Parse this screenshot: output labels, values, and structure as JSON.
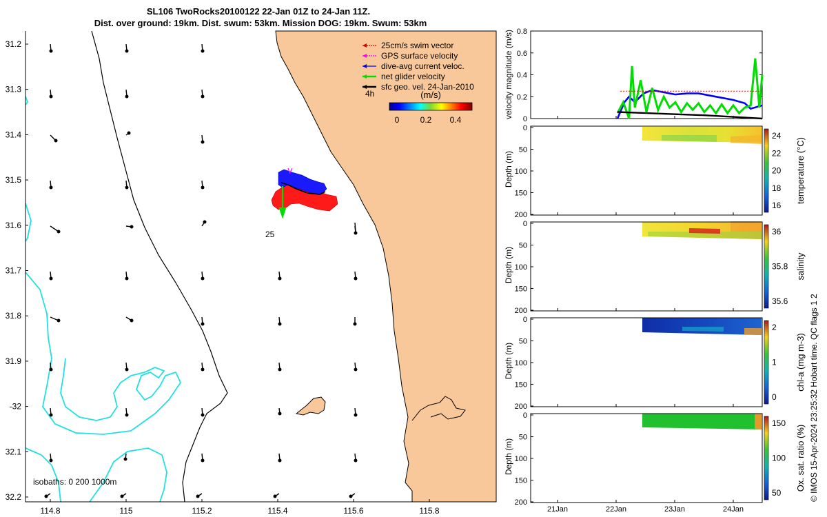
{
  "title": {
    "line1": "SL106 TwoRocks20100122 22-Jan 01Z to 24-Jan 11Z.",
    "line2": "Dist. over ground: 19km. Dist. swum: 53km. Mission DOG: 19km. Swum: 53km"
  },
  "colors": {
    "land": "#f9c89a",
    "isobath_200": "#000000",
    "isobath_1000": "#22e0e0",
    "swim_vector": "#e00000",
    "gps_velocity": "#ff00ff",
    "dive_avg": "#0000ff",
    "net_glider": "#00dd00",
    "sfc_geo": "#000000"
  },
  "map": {
    "lat_ticks": [
      "31.2",
      "31.3",
      "31.4",
      "31.5",
      "31.6",
      "31.7",
      "31.8",
      "31.9",
      "-32",
      "32.1",
      "32.2"
    ],
    "lon_ticks": [
      "114.8",
      "115",
      "115.2",
      "115.4",
      "115.6",
      "115.8"
    ],
    "legend": [
      {
        "key": "swim",
        "label": "25cm/s swim vector",
        "color": "#e00000"
      },
      {
        "key": "gps",
        "label": "GPS surface velocity",
        "color": "#ff00ff"
      },
      {
        "key": "dive",
        "label": "dive-avg current veloc.",
        "color": "#0000ff"
      },
      {
        "key": "net",
        "label": "net glider velocity",
        "color": "#00dd00"
      },
      {
        "key": "sfc",
        "label": "sfc geo. vel. 24-Jan-2010",
        "color": "#000000"
      }
    ],
    "time_label": "4h",
    "colorbar": {
      "title": "(m/s)",
      "ticks": [
        "0",
        "0.2",
        "0.4"
      ]
    },
    "scale_label": "25",
    "isobaths_label": "isobaths: 0   200  1000m"
  },
  "velocity_panel": {
    "ylabel": "velocity magnitude (m/s)",
    "ylim": [
      0,
      0.8
    ],
    "yticks": [
      "0",
      "0.2",
      "0.4",
      "0.6",
      "0.8"
    ]
  },
  "sections": [
    {
      "key": "temp",
      "ylabel": "Depth (m)",
      "cbar_label": "temperature (°C)",
      "cbar_ticks": [
        "24",
        "22",
        "20",
        "18",
        "16"
      ],
      "depth_ticks": [
        "0",
        "50",
        "100",
        "150",
        "200"
      ]
    },
    {
      "key": "sal",
      "ylabel": "Depth (m)",
      "cbar_label": "salinity",
      "cbar_ticks": [
        "36",
        "35.8",
        "35.6"
      ],
      "depth_ticks": [
        "0",
        "50",
        "100",
        "150",
        "200"
      ]
    },
    {
      "key": "chl",
      "ylabel": "Depth (m)",
      "cbar_label": "chl-a (mg m-3)",
      "cbar_ticks": [
        "2",
        "1",
        "0"
      ],
      "depth_ticks": [
        "0",
        "50",
        "100",
        "150",
        "200"
      ]
    },
    {
      "key": "oxy",
      "ylabel": "Depth (m)",
      "cbar_label": "Ox. sat. ratio (%)",
      "cbar_ticks": [
        "150",
        "100",
        "50"
      ],
      "depth_ticks": [
        "0",
        "50",
        "100",
        "150",
        "200"
      ]
    }
  ],
  "time_ticks": [
    "21Jan",
    "22Jan",
    "23Jan",
    "24Jan"
  ],
  "credit": "© IMOS 15-Apr-2024 23:25:32 Hobart time. QC flags 1  2",
  "chart_data": [
    {
      "type": "line",
      "title": "velocity magnitude",
      "ylabel": "velocity magnitude (m/s)",
      "ylim": [
        0,
        0.8
      ],
      "xlim_days": [
        20.5,
        24.5
      ],
      "series": [
        {
          "name": "dive-avg current veloc.",
          "color": "#0000ff",
          "x": [
            22.0,
            22.12,
            22.2,
            22.3,
            22.45,
            22.6,
            22.8,
            23.0,
            23.2,
            23.4,
            23.6,
            23.8,
            24.0,
            24.2,
            24.3,
            24.5
          ],
          "values": [
            0.0,
            0.15,
            0.2,
            0.15,
            0.23,
            0.26,
            0.24,
            0.22,
            0.23,
            0.23,
            0.21,
            0.19,
            0.17,
            0.14,
            0.09,
            0.12
          ]
        },
        {
          "name": "net glider velocity",
          "color": "#00dd00",
          "x": [
            22.0,
            22.1,
            22.2,
            22.25,
            22.3,
            22.4,
            22.5,
            22.6,
            22.7,
            22.8,
            22.9,
            23.0,
            23.1,
            23.2,
            23.3,
            23.4,
            23.5,
            23.6,
            23.7,
            23.8,
            23.9,
            24.0,
            24.1,
            24.2,
            24.3,
            24.38,
            24.45,
            24.5
          ],
          "values": [
            0.05,
            0.15,
            0.0,
            0.48,
            0.1,
            0.35,
            0.06,
            0.28,
            0.08,
            0.2,
            0.1,
            0.15,
            0.06,
            0.14,
            0.08,
            0.14,
            0.06,
            0.12,
            0.05,
            0.13,
            0.05,
            0.12,
            0.05,
            0.1,
            0.12,
            0.55,
            0.1,
            0.4
          ]
        },
        {
          "name": "25cm/s swim vector",
          "color": "#e00000",
          "x": [
            22.05,
            24.45
          ],
          "values": [
            0.25,
            0.25
          ]
        },
        {
          "name": "sfc geo. vel.",
          "color": "#000000",
          "x": [
            22.0,
            22.5,
            23.0,
            23.5,
            24.0,
            24.5
          ],
          "values": [
            0.06,
            0.05,
            0.04,
            0.03,
            0.015,
            0.0
          ]
        }
      ],
      "x_ticks": [
        "21Jan",
        "22Jan",
        "23Jan",
        "24Jan"
      ]
    },
    {
      "type": "heatmap",
      "title": "temperature (°C)",
      "ylim": [
        0,
        200
      ],
      "clim": [
        15.5,
        24.5
      ],
      "time_range": [
        "22-Jan",
        "24-Jan"
      ],
      "depth_range": [
        0,
        35
      ],
      "typical_value": 21.5
    },
    {
      "type": "heatmap",
      "title": "salinity",
      "ylim": [
        0,
        200
      ],
      "clim": [
        35.5,
        36.1
      ],
      "time_range": [
        "22-Jan",
        "24-Jan"
      ],
      "depth_range": [
        0,
        38
      ],
      "typical_value": 35.95
    },
    {
      "type": "heatmap",
      "title": "chl-a (mg m-3)",
      "ylim": [
        0,
        200
      ],
      "clim": [
        0,
        2
      ],
      "time_range": [
        "22-Jan",
        "24-Jan"
      ],
      "depth_range": [
        0,
        35
      ],
      "typical_value": 0.25
    },
    {
      "type": "heatmap",
      "title": "Ox. sat. ratio (%)",
      "ylim": [
        0,
        200
      ],
      "clim": [
        20,
        175
      ],
      "time_range": [
        "22-Jan",
        "24-Jan"
      ],
      "depth_range": [
        0,
        30
      ],
      "typical_value": 100
    }
  ]
}
